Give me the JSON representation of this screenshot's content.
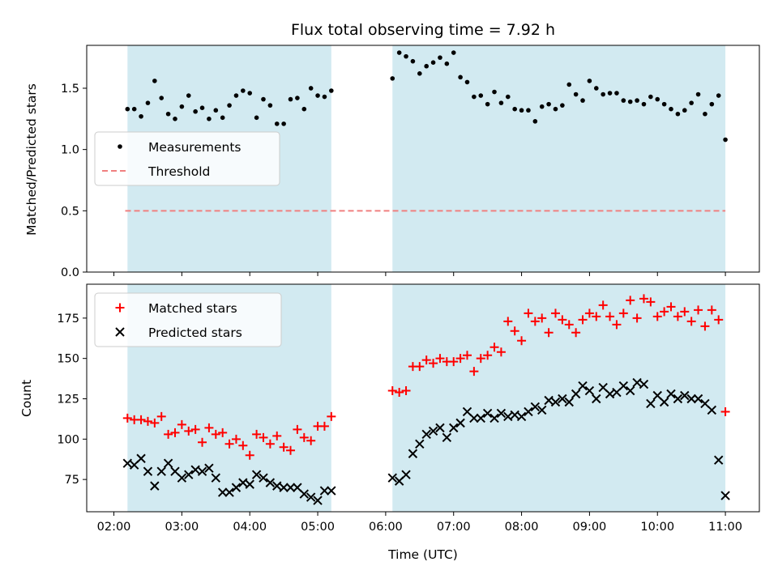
{
  "chart_data": [
    {
      "type": "scatter",
      "title": "Flux total observing time = 7.92 h",
      "xlabel": "",
      "ylabel": "Matched/Predicted stars",
      "ylim": [
        0,
        1.85
      ],
      "yticks": [
        "0.0",
        "0.5",
        "1.0",
        "1.5"
      ],
      "legend": {
        "placement": "center-left",
        "entries": [
          "Measurements",
          "Threshold"
        ]
      },
      "threshold": {
        "name": "Threshold",
        "value": 0.5,
        "x_start": "02:10",
        "x_end": "11:00",
        "color": "#f08080",
        "style": "dashed"
      },
      "shaded_intervals": [
        [
          "02:12",
          "05:12"
        ],
        [
          "06:06",
          "11:00"
        ]
      ],
      "shade_color": "#add8e6",
      "series": [
        {
          "name": "Measurements",
          "color": "#000000",
          "marker": "dot",
          "x": [
            "02:12",
            "02:18",
            "02:24",
            "02:30",
            "02:36",
            "02:42",
            "02:48",
            "02:54",
            "03:00",
            "03:06",
            "03:12",
            "03:18",
            "03:24",
            "03:30",
            "03:36",
            "03:42",
            "03:48",
            "03:54",
            "04:00",
            "04:06",
            "04:12",
            "04:18",
            "04:24",
            "04:30",
            "04:36",
            "04:42",
            "04:48",
            "04:54",
            "05:00",
            "05:06",
            "05:12",
            "06:06",
            "06:12",
            "06:18",
            "06:24",
            "06:30",
            "06:36",
            "06:42",
            "06:48",
            "06:54",
            "07:00",
            "07:06",
            "07:12",
            "07:18",
            "07:24",
            "07:30",
            "07:36",
            "07:42",
            "07:48",
            "07:54",
            "08:00",
            "08:06",
            "08:12",
            "08:18",
            "08:24",
            "08:30",
            "08:36",
            "08:42",
            "08:48",
            "08:54",
            "09:00",
            "09:06",
            "09:12",
            "09:18",
            "09:24",
            "09:30",
            "09:36",
            "09:42",
            "09:48",
            "09:54",
            "10:00",
            "10:06",
            "10:12",
            "10:18",
            "10:24",
            "10:30",
            "10:36",
            "10:42",
            "10:48",
            "10:54",
            "11:00"
          ],
          "y": [
            1.33,
            1.33,
            1.27,
            1.38,
            1.56,
            1.42,
            1.29,
            1.25,
            1.35,
            1.44,
            1.31,
            1.34,
            1.25,
            1.32,
            1.26,
            1.36,
            1.44,
            1.48,
            1.46,
            1.26,
            1.41,
            1.36,
            1.21,
            1.21,
            1.41,
            1.42,
            1.33,
            1.5,
            1.44,
            1.43,
            1.48,
            1.58,
            1.79,
            1.76,
            1.72,
            1.62,
            1.68,
            1.71,
            1.75,
            1.7,
            1.79,
            1.59,
            1.55,
            1.43,
            1.44,
            1.37,
            1.47,
            1.38,
            1.43,
            1.33,
            1.32,
            1.32,
            1.23,
            1.35,
            1.37,
            1.33,
            1.36,
            1.53,
            1.45,
            1.4,
            1.56,
            1.5,
            1.45,
            1.46,
            1.46,
            1.4,
            1.39,
            1.4,
            1.37,
            1.43,
            1.41,
            1.37,
            1.33,
            1.29,
            1.32,
            1.38,
            1.45,
            1.29,
            1.37,
            1.44,
            1.08
          ]
        }
      ]
    },
    {
      "type": "scatter",
      "title": "",
      "xlabel": "Time (UTC)",
      "ylabel": "Count",
      "ylim": [
        55,
        196
      ],
      "yticks": [
        "75",
        "100",
        "125",
        "150",
        "175"
      ],
      "xticks": [
        "02:00",
        "03:00",
        "04:00",
        "05:00",
        "06:00",
        "07:00",
        "08:00",
        "09:00",
        "10:00",
        "11:00"
      ],
      "legend": {
        "placement": "top-left",
        "entries": [
          "Matched stars",
          "Predicted stars"
        ]
      },
      "shaded_intervals": [
        [
          "02:12",
          "05:12"
        ],
        [
          "06:06",
          "11:00"
        ]
      ],
      "shade_color": "#add8e6",
      "series": [
        {
          "name": "Matched stars",
          "color": "#ff0000",
          "marker": "plus",
          "x": [
            "02:12",
            "02:18",
            "02:24",
            "02:30",
            "02:36",
            "02:42",
            "02:48",
            "02:54",
            "03:00",
            "03:06",
            "03:12",
            "03:18",
            "03:24",
            "03:30",
            "03:36",
            "03:42",
            "03:48",
            "03:54",
            "04:00",
            "04:06",
            "04:12",
            "04:18",
            "04:24",
            "04:30",
            "04:36",
            "04:42",
            "04:48",
            "04:54",
            "05:00",
            "05:06",
            "05:12",
            "06:06",
            "06:12",
            "06:18",
            "06:24",
            "06:30",
            "06:36",
            "06:42",
            "06:48",
            "06:54",
            "07:00",
            "07:06",
            "07:12",
            "07:18",
            "07:24",
            "07:30",
            "07:36",
            "07:42",
            "07:48",
            "07:54",
            "08:00",
            "08:06",
            "08:12",
            "08:18",
            "08:24",
            "08:30",
            "08:36",
            "08:42",
            "08:48",
            "08:54",
            "09:00",
            "09:06",
            "09:12",
            "09:18",
            "09:24",
            "09:30",
            "09:36",
            "09:42",
            "09:48",
            "09:54",
            "10:00",
            "10:06",
            "10:12",
            "10:18",
            "10:24",
            "10:30",
            "10:36",
            "10:42",
            "10:48",
            "10:54",
            "11:00"
          ],
          "y": [
            113,
            112,
            112,
            111,
            110,
            114,
            103,
            104,
            109,
            105,
            106,
            98,
            107,
            103,
            104,
            97,
            100,
            96,
            90,
            103,
            101,
            97,
            102,
            95,
            93,
            106,
            101,
            99,
            108,
            108,
            114,
            130,
            129,
            130,
            145,
            145,
            149,
            147,
            150,
            148,
            148,
            150,
            152,
            142,
            150,
            152,
            157,
            154,
            173,
            167,
            161,
            178,
            173,
            175,
            166,
            178,
            174,
            171,
            166,
            174,
            178,
            176,
            183,
            176,
            171,
            178,
            186,
            175,
            187,
            185,
            176,
            179,
            182,
            176,
            179,
            173,
            180,
            170,
            180,
            174,
            117
          ]
        },
        {
          "name": "Predicted stars",
          "color": "#000000",
          "marker": "x",
          "x": [
            "02:12",
            "02:18",
            "02:24",
            "02:30",
            "02:36",
            "02:42",
            "02:48",
            "02:54",
            "03:00",
            "03:06",
            "03:12",
            "03:18",
            "03:24",
            "03:30",
            "03:36",
            "03:42",
            "03:48",
            "03:54",
            "04:00",
            "04:06",
            "04:12",
            "04:18",
            "04:24",
            "04:30",
            "04:36",
            "04:42",
            "04:48",
            "04:54",
            "05:00",
            "05:06",
            "05:12",
            "06:06",
            "06:12",
            "06:18",
            "06:24",
            "06:30",
            "06:36",
            "06:42",
            "06:48",
            "06:54",
            "07:00",
            "07:06",
            "07:12",
            "07:18",
            "07:24",
            "07:30",
            "07:36",
            "07:42",
            "07:48",
            "07:54",
            "08:00",
            "08:06",
            "08:12",
            "08:18",
            "08:24",
            "08:30",
            "08:36",
            "08:42",
            "08:48",
            "08:54",
            "09:00",
            "09:06",
            "09:12",
            "09:18",
            "09:24",
            "09:30",
            "09:36",
            "09:42",
            "09:48",
            "09:54",
            "10:00",
            "10:06",
            "10:12",
            "10:18",
            "10:24",
            "10:30",
            "10:36",
            "10:42",
            "10:48",
            "10:54",
            "11:00"
          ],
          "y": [
            85,
            84,
            88,
            80,
            71,
            80,
            85,
            80,
            76,
            78,
            81,
            80,
            82,
            76,
            67,
            67,
            70,
            73,
            72,
            78,
            76,
            73,
            71,
            70,
            70,
            70,
            66,
            64,
            62,
            68,
            68,
            76,
            74,
            78,
            91,
            97,
            103,
            105,
            107,
            101,
            107,
            110,
            117,
            113,
            113,
            116,
            113,
            116,
            114,
            115,
            114,
            117,
            120,
            118,
            124,
            123,
            125,
            123,
            128,
            133,
            130,
            125,
            132,
            128,
            129,
            133,
            130,
            135,
            134,
            122,
            127,
            123,
            128,
            125,
            127,
            125,
            125,
            122,
            118,
            87,
            65
          ]
        }
      ]
    }
  ]
}
